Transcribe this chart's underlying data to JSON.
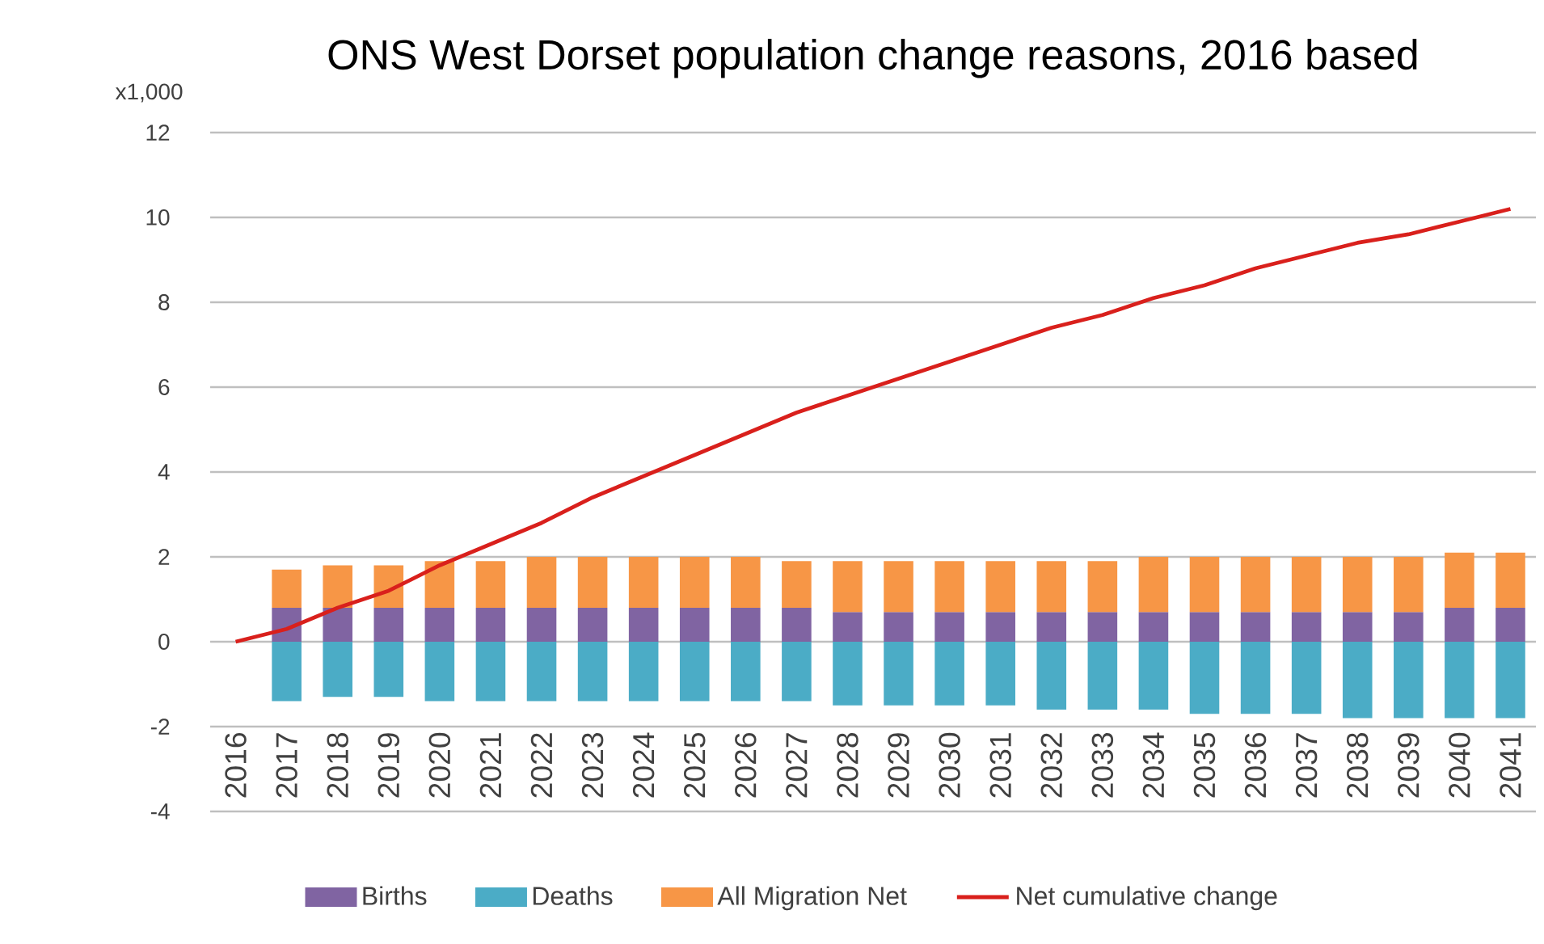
{
  "chart_data": {
    "type": "bar",
    "stacked": true,
    "title": "ONS West Dorset population change reasons, 2016 based",
    "ylabel": "x1,000",
    "categories": [
      "2016",
      "2017",
      "2018",
      "2019",
      "2020",
      "2021",
      "2022",
      "2023",
      "2024",
      "2025",
      "2026",
      "2027",
      "2028",
      "2029",
      "2030",
      "2031",
      "2032",
      "2033",
      "2034",
      "2035",
      "2036",
      "2037",
      "2038",
      "2039",
      "2040",
      "2041"
    ],
    "series": [
      {
        "name": "Births",
        "color": "#8064a2",
        "values": [
          null,
          0.8,
          0.8,
          0.8,
          0.8,
          0.8,
          0.8,
          0.8,
          0.8,
          0.8,
          0.8,
          0.8,
          0.7,
          0.7,
          0.7,
          0.7,
          0.7,
          0.7,
          0.7,
          0.7,
          0.7,
          0.7,
          0.7,
          0.7,
          0.8,
          0.8
        ]
      },
      {
        "name": "Deaths",
        "color": "#4bacc6",
        "values": [
          null,
          -1.4,
          -1.3,
          -1.3,
          -1.4,
          -1.4,
          -1.4,
          -1.4,
          -1.4,
          -1.4,
          -1.4,
          -1.4,
          -1.5,
          -1.5,
          -1.5,
          -1.5,
          -1.6,
          -1.6,
          -1.6,
          -1.7,
          -1.7,
          -1.7,
          -1.8,
          -1.8,
          -1.8,
          -1.8
        ]
      },
      {
        "name": "All Migration Net",
        "color": "#f79646",
        "values": [
          null,
          0.9,
          1.0,
          1.0,
          1.1,
          1.1,
          1.2,
          1.2,
          1.2,
          1.2,
          1.2,
          1.1,
          1.2,
          1.2,
          1.2,
          1.2,
          1.2,
          1.2,
          1.3,
          1.3,
          1.3,
          1.3,
          1.3,
          1.3,
          1.3,
          1.3
        ]
      },
      {
        "name": "Net cumulative change",
        "type": "line",
        "color": "#d9201c",
        "values": [
          0,
          0.3,
          0.8,
          1.2,
          1.8,
          2.3,
          2.8,
          3.4,
          3.9,
          4.4,
          4.9,
          5.4,
          5.8,
          6.2,
          6.6,
          7.0,
          7.4,
          7.7,
          8.1,
          8.4,
          8.8,
          9.1,
          9.4,
          9.6,
          9.9,
          10.2
        ]
      }
    ],
    "ylim": [
      -4,
      12
    ],
    "yticks": [
      -4,
      -2,
      0,
      2,
      4,
      6,
      8,
      10,
      12
    ],
    "grid": "y",
    "legend": "bottom"
  }
}
